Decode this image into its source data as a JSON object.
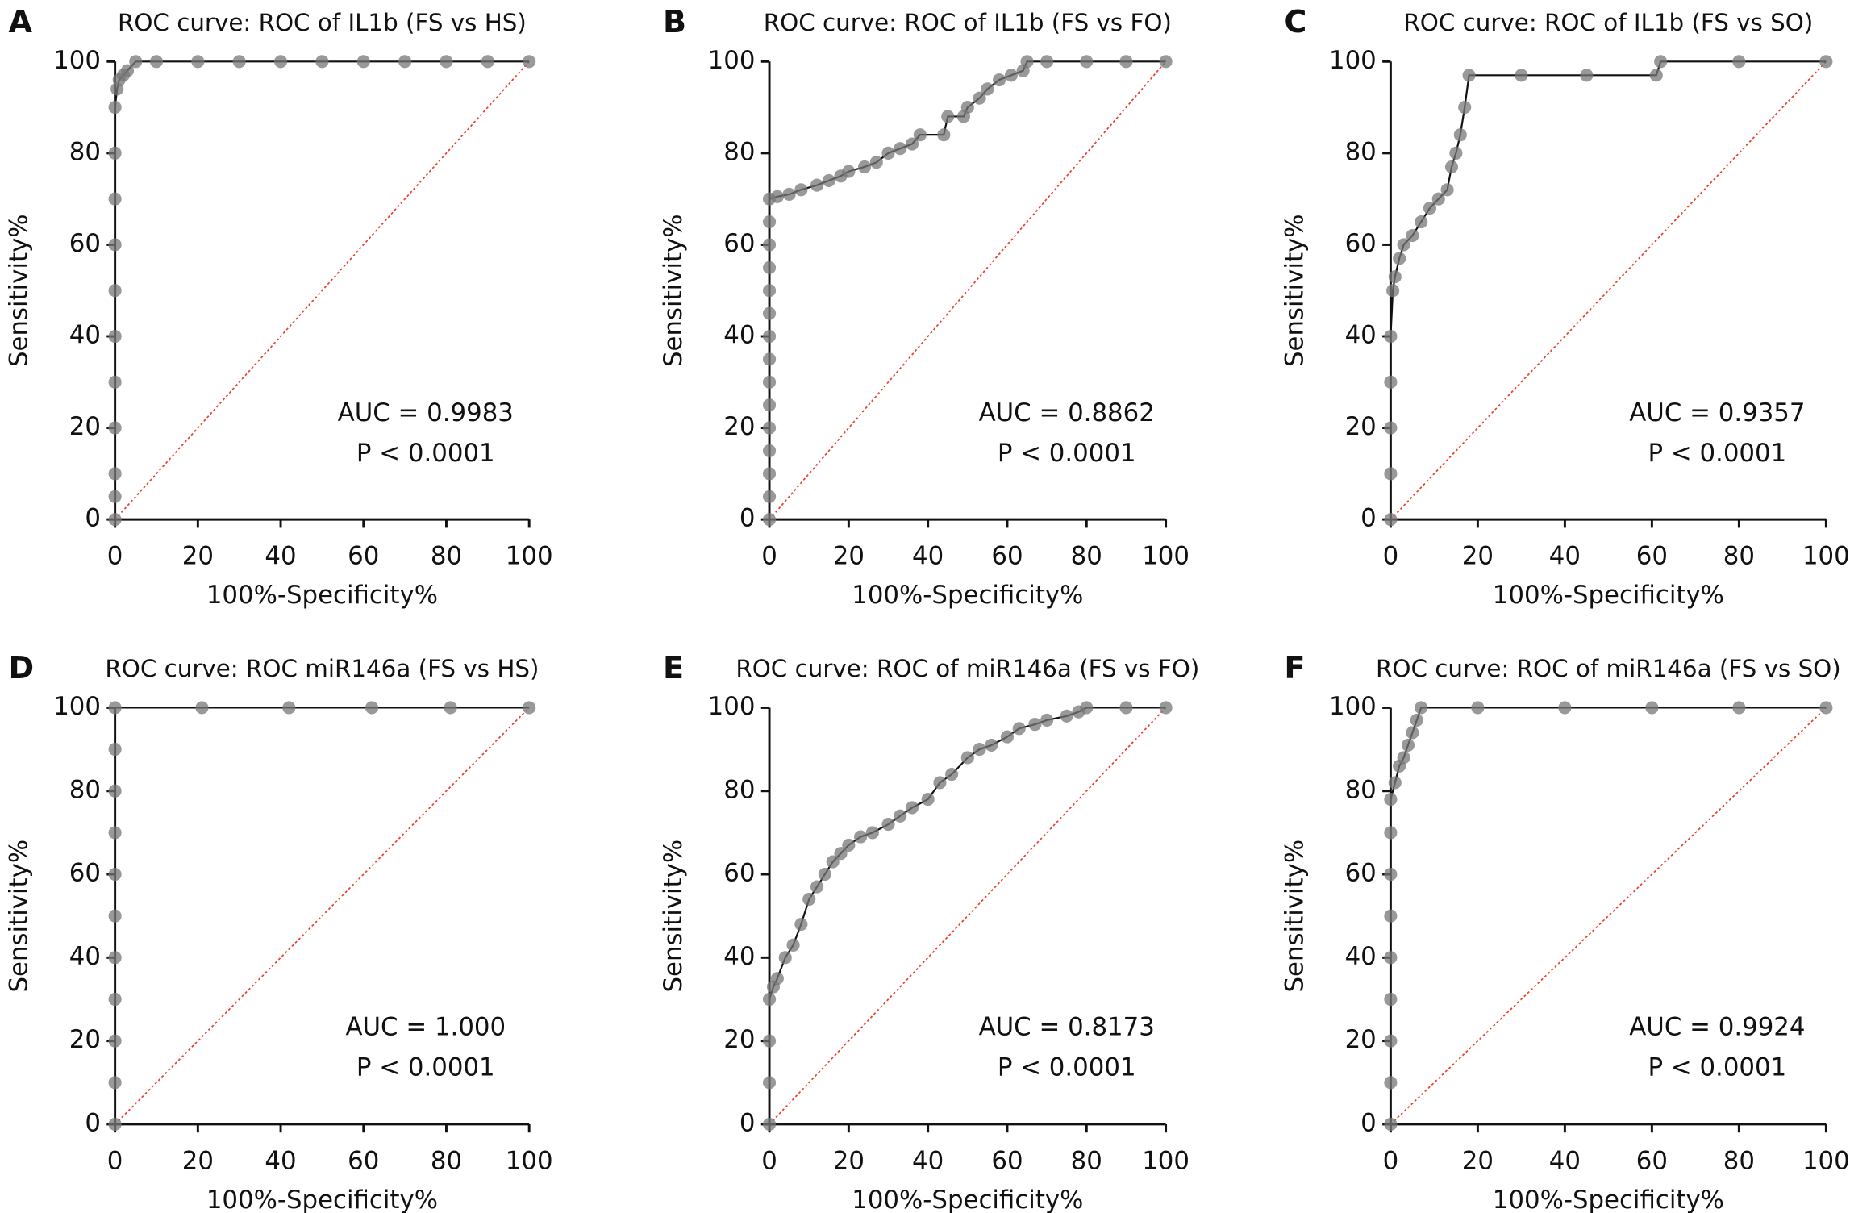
{
  "chart_data": [
    {
      "type": "line",
      "panel": "A",
      "title": "ROC curve: ROC of IL1b (FS vs HS)",
      "xlabel": "100%-Specificity%",
      "ylabel": "Sensitivity%",
      "annotations": [
        "AUC = 0.9983",
        "P < 0.0001"
      ],
      "color": "#777777",
      "x": [
        0,
        0,
        0,
        0,
        0,
        0,
        0,
        0,
        0,
        0,
        0,
        0.5,
        1,
        2,
        3,
        5,
        10,
        20,
        30,
        40,
        50,
        60,
        70,
        80,
        90,
        100
      ],
      "values": [
        0,
        5,
        10,
        20,
        30,
        40,
        50,
        60,
        70,
        80,
        90,
        94,
        96,
        97,
        98,
        100,
        100,
        100,
        100,
        100,
        100,
        100,
        100,
        100,
        100,
        100
      ],
      "xlim": [
        0,
        100
      ],
      "ylim": [
        0,
        100
      ],
      "xticks": [
        0,
        20,
        40,
        60,
        80,
        100
      ],
      "yticks": [
        0,
        20,
        40,
        60,
        80,
        100
      ]
    },
    {
      "type": "line",
      "panel": "B",
      "title": "ROC curve: ROC of IL1b (FS vs FO)",
      "xlabel": "100%-Specificity%",
      "ylabel": "Sensitivity%",
      "annotations": [
        "AUC = 0.8862",
        "P < 0.0001"
      ],
      "color": "#777777",
      "x": [
        0,
        0,
        0,
        0,
        0,
        0,
        0,
        0,
        0,
        0,
        0,
        0,
        0,
        0,
        0,
        2,
        5,
        8,
        12,
        15,
        18,
        20,
        24,
        27,
        30,
        33,
        36,
        38,
        44,
        45,
        49,
        50,
        53,
        55,
        58,
        61,
        64,
        65,
        70,
        80,
        90,
        100
      ],
      "values": [
        0,
        5,
        10,
        15,
        20,
        25,
        30,
        35,
        40,
        45,
        50,
        55,
        60,
        65,
        70,
        70.5,
        71,
        72,
        73,
        74,
        75,
        76,
        77,
        78,
        80,
        81,
        82,
        84,
        84,
        88,
        88,
        90,
        92,
        94,
        96,
        97,
        98,
        100,
        100,
        100,
        100,
        100
      ],
      "xlim": [
        0,
        100
      ],
      "ylim": [
        0,
        100
      ],
      "xticks": [
        0,
        20,
        40,
        60,
        80,
        100
      ],
      "yticks": [
        0,
        20,
        40,
        60,
        80,
        100
      ]
    },
    {
      "type": "line",
      "panel": "C",
      "title": "ROC curve: ROC of IL1b (FS vs SO)",
      "xlabel": "100%-Specificity%",
      "ylabel": "Sensitivity%",
      "annotations": [
        "AUC = 0.9357",
        "P < 0.0001"
      ],
      "color": "#777777",
      "x": [
        0,
        0,
        0,
        0,
        0,
        0.5,
        1,
        2,
        3,
        5,
        7,
        9,
        11,
        13,
        14,
        15,
        16,
        17,
        18,
        30,
        45,
        61,
        62,
        80,
        100
      ],
      "values": [
        0,
        10,
        20,
        30,
        40,
        50,
        53,
        57,
        60,
        62,
        65,
        68,
        70,
        72,
        77,
        80,
        84,
        90,
        97,
        97,
        97,
        97,
        100,
        100,
        100
      ],
      "xlim": [
        0,
        100
      ],
      "ylim": [
        0,
        100
      ],
      "xticks": [
        0,
        20,
        40,
        60,
        80,
        100
      ],
      "yticks": [
        0,
        20,
        40,
        60,
        80,
        100
      ]
    },
    {
      "type": "line",
      "panel": "D",
      "title": "ROC curve: ROC miR146a (FS vs HS)",
      "xlabel": "100%-Specificity%",
      "ylabel": "Sensitivity%",
      "annotations": [
        "AUC = 1.000",
        "P < 0.0001"
      ],
      "color": "#777777",
      "x": [
        0,
        0,
        0,
        0,
        0,
        0,
        0,
        0,
        0,
        0,
        0,
        21,
        42,
        62,
        81,
        100
      ],
      "values": [
        0,
        10,
        20,
        30,
        40,
        50,
        60,
        70,
        80,
        90,
        100,
        100,
        100,
        100,
        100,
        100
      ],
      "xlim": [
        0,
        100
      ],
      "ylim": [
        0,
        100
      ],
      "xticks": [
        0,
        20,
        40,
        60,
        80,
        100
      ],
      "yticks": [
        0,
        20,
        40,
        60,
        80,
        100
      ]
    },
    {
      "type": "line",
      "panel": "E",
      "title": "ROC curve: ROC of miR146a (FS vs FO)",
      "xlabel": "100%-Specificity%",
      "ylabel": "Sensitivity%",
      "annotations": [
        "AUC = 0.8173",
        "P < 0.0001"
      ],
      "color": "#777777",
      "x": [
        0,
        0,
        0,
        0,
        1,
        2,
        4,
        6,
        8,
        10,
        12,
        14,
        16,
        18,
        20,
        23,
        26,
        30,
        33,
        36,
        40,
        43,
        46,
        50,
        53,
        56,
        60,
        63,
        67,
        70,
        75,
        78,
        80,
        90,
        100
      ],
      "values": [
        0,
        10,
        20,
        30,
        33,
        35,
        40,
        43,
        48,
        54,
        57,
        60,
        63,
        65,
        67,
        69,
        70,
        72,
        74,
        76,
        78,
        82,
        84,
        88,
        90,
        91,
        93,
        95,
        96,
        97,
        98,
        99,
        100,
        100,
        100
      ],
      "xlim": [
        0,
        100
      ],
      "ylim": [
        0,
        100
      ],
      "xticks": [
        0,
        20,
        40,
        60,
        80,
        100
      ],
      "yticks": [
        0,
        20,
        40,
        60,
        80,
        100
      ]
    },
    {
      "type": "line",
      "panel": "F",
      "title": "ROC curve: ROC of miR146a (FS vs SO)",
      "xlabel": "100%-Specificity%",
      "ylabel": "Sensitivity%",
      "annotations": [
        "AUC = 0.9924",
        "P < 0.0001"
      ],
      "color": "#777777",
      "x": [
        0,
        0,
        0,
        0,
        0,
        0,
        0,
        0,
        0,
        1,
        2,
        3,
        4,
        5,
        6,
        7,
        20,
        40,
        60,
        80,
        100
      ],
      "values": [
        0,
        10,
        20,
        30,
        40,
        50,
        60,
        70,
        78,
        82,
        86,
        88,
        91,
        94,
        97,
        100,
        100,
        100,
        100,
        100,
        100
      ],
      "xlim": [
        0,
        100
      ],
      "ylim": [
        0,
        100
      ],
      "xticks": [
        0,
        20,
        40,
        60,
        80,
        100
      ],
      "yticks": [
        0,
        20,
        40,
        60,
        80,
        100
      ]
    }
  ]
}
